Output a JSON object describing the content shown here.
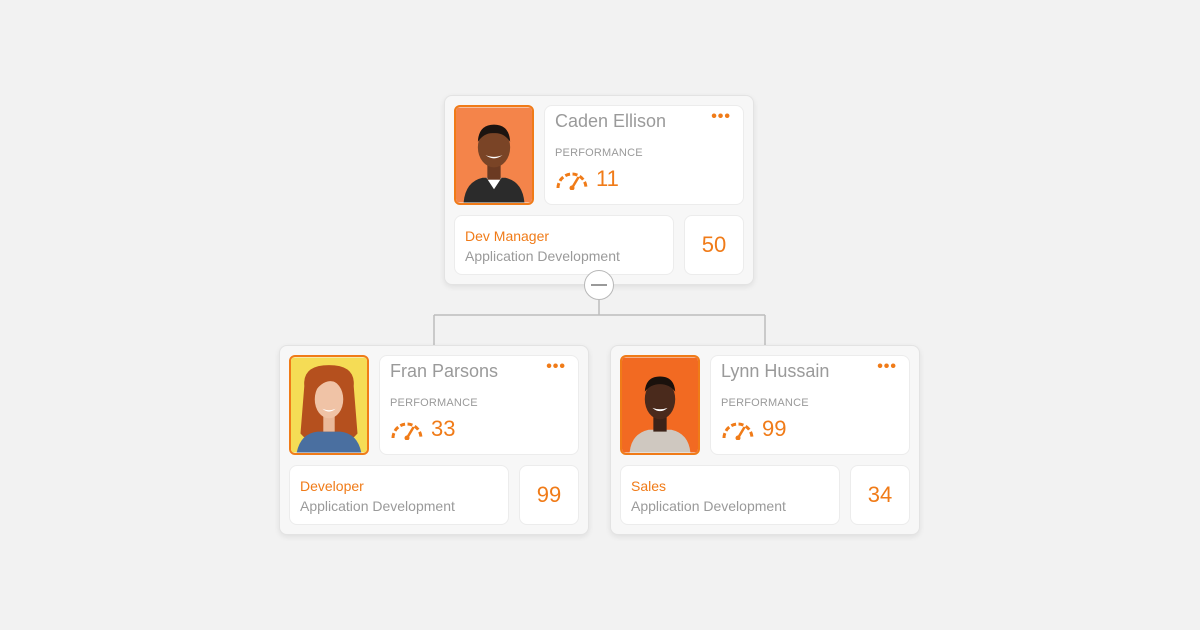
{
  "colors": {
    "accent": "#f07b18",
    "muted_text": "#9a9a9a",
    "background": "#f2f2f2"
  },
  "root": {
    "name": "Caden Ellison",
    "menu_label": "•••",
    "performance_label": "PERFORMANCE",
    "performance_value": "11",
    "role": "Dev Manager",
    "department": "Application Development",
    "count": "50",
    "avatar_bg": "#f4844a"
  },
  "collapse_toggle": {
    "icon": "minus-icon"
  },
  "children": [
    {
      "name": "Fran Parsons",
      "menu_label": "•••",
      "performance_label": "PERFORMANCE",
      "performance_value": "33",
      "role": "Developer",
      "department": "Application Development",
      "count": "99",
      "avatar_bg": "#f5dc55"
    },
    {
      "name": "Lynn Hussain",
      "menu_label": "•••",
      "performance_label": "PERFORMANCE",
      "performance_value": "99",
      "role": "Sales",
      "department": "Application Development",
      "count": "34",
      "avatar_bg": "#f26a22"
    }
  ]
}
